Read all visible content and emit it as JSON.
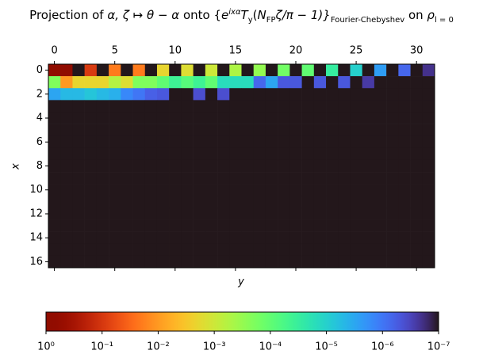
{
  "chart_data": {
    "type": "heatmap",
    "title": [
      {
        "text": "Projection of ",
        "role": "plain"
      },
      {
        "text": "α, ζ ↦ θ − α",
        "role": "math"
      },
      {
        "text": " onto {",
        "role": "plain"
      },
      {
        "text": "e",
        "role": "math"
      },
      {
        "text": "ixα",
        "role": "sup"
      },
      {
        "text": "T",
        "role": "math"
      },
      {
        "text": "y",
        "role": "sub"
      },
      {
        "text": "(",
        "role": "plain"
      },
      {
        "text": "N",
        "role": "math"
      },
      {
        "text": "FP",
        "role": "sub"
      },
      {
        "text": "ζ/π − 1)}",
        "role": "math"
      },
      {
        "text": "Fourier-Chebyshev",
        "role": "sub"
      },
      {
        "text": " on ",
        "role": "plain"
      },
      {
        "text": "ρ",
        "role": "math"
      },
      {
        "text": "l = 0",
        "role": "sub"
      }
    ],
    "xlabel": "y",
    "ylabel": "x",
    "xlim": [
      -0.5,
      31.5
    ],
    "ylim": [
      16.5,
      -0.5
    ],
    "xticks": [
      0,
      5,
      10,
      15,
      20,
      25,
      30
    ],
    "yticks": [
      0,
      2,
      4,
      6,
      8,
      10,
      12,
      14,
      16
    ],
    "colormap": "turbo",
    "log_scale": true,
    "clim": [
      1,
      1e-07
    ],
    "colorbar_ticks": [
      {
        "value": 1,
        "label": "10⁰"
      },
      {
        "value": 0.1,
        "label": "10⁻¹"
      },
      {
        "value": 0.01,
        "label": "10⁻²"
      },
      {
        "value": 0.001,
        "label": "10⁻³"
      },
      {
        "value": 0.0001,
        "label": "10⁻⁴"
      },
      {
        "value": 1e-05,
        "label": "10⁻⁵"
      },
      {
        "value": 1e-06,
        "label": "10⁻⁶"
      },
      {
        "value": 1e-07,
        "label": "10⁻⁷"
      }
    ],
    "z": [
      [
        1,
        0.8,
        1e-07,
        0.09,
        1e-07,
        0.02,
        1e-07,
        0.02,
        1e-07,
        0.002,
        1e-07,
        0.0015,
        1e-07,
        0.001,
        1e-07,
        0.0005,
        1e-07,
        0.0003,
        1e-07,
        0.00015,
        1e-07,
        0.0001,
        1e-07,
        3e-05,
        1e-07,
        1e-05,
        1e-07,
        2.5e-06,
        1e-07,
        7e-07,
        1e-07,
        2e-07
      ],
      [
        0.0002,
        0.01,
        0.002,
        0.002,
        0.002,
        0.0006,
        0.0015,
        0.0002,
        0.0002,
        0.0001,
        4e-05,
        8e-05,
        4e-05,
        0.0001,
        1.5e-05,
        1.5e-05,
        1.5e-05,
        7e-07,
        3e-06,
        5e-07,
        5e-07,
        1e-07,
        5e-07,
        1e-07,
        5e-07,
        1e-07,
        2.5e-07,
        1e-07,
        1e-07,
        1e-07,
        1e-07,
        1e-07
      ],
      [
        3e-06,
        5e-06,
        5e-06,
        7e-06,
        5e-06,
        4e-06,
        1.5e-06,
        1e-06,
        6e-07,
        5e-07,
        1e-07,
        1e-07,
        4e-07,
        1e-07,
        4e-07,
        1e-07,
        1e-07,
        1e-07,
        1e-07,
        1e-07,
        1e-07,
        1e-07,
        1e-07,
        1e-07,
        1e-07,
        1e-07,
        1e-07,
        1e-07,
        1e-07,
        1e-07,
        1e-07,
        1e-07
      ],
      [
        1e-07,
        1e-07,
        1e-07,
        1e-07,
        1e-07,
        1e-07,
        1e-07,
        1e-07,
        1e-07,
        1e-07,
        1e-07,
        1e-07,
        1e-07,
        1e-07,
        1e-07,
        1e-07,
        1e-07,
        1e-07,
        1e-07,
        1e-07,
        1e-07,
        1e-07,
        1e-07,
        1e-07,
        1e-07,
        1e-07,
        1e-07,
        1e-07,
        1e-07,
        1e-07,
        1e-07,
        1e-07
      ],
      [
        1e-07,
        1e-07,
        1e-07,
        1e-07,
        1e-07,
        1e-07,
        1e-07,
        1e-07,
        1e-07,
        1e-07,
        1e-07,
        1e-07,
        1e-07,
        1e-07,
        1e-07,
        1e-07,
        1e-07,
        1e-07,
        1e-07,
        1e-07,
        1e-07,
        1e-07,
        1e-07,
        1e-07,
        1e-07,
        1e-07,
        1e-07,
        1e-07,
        1e-07,
        1e-07,
        1e-07,
        1e-07
      ],
      [
        1e-07,
        1e-07,
        1e-07,
        1e-07,
        1e-07,
        1e-07,
        1e-07,
        1e-07,
        1e-07,
        1e-07,
        1e-07,
        1e-07,
        1e-07,
        1e-07,
        1e-07,
        1e-07,
        1e-07,
        1e-07,
        1e-07,
        1e-07,
        1e-07,
        1e-07,
        1e-07,
        1e-07,
        1e-07,
        1e-07,
        1e-07,
        1e-07,
        1e-07,
        1e-07,
        1e-07,
        1e-07
      ],
      [
        1e-07,
        1e-07,
        1e-07,
        1e-07,
        1e-07,
        1e-07,
        1e-07,
        1e-07,
        1e-07,
        1e-07,
        1e-07,
        1e-07,
        1e-07,
        1e-07,
        1e-07,
        1e-07,
        1e-07,
        1e-07,
        1e-07,
        1e-07,
        1e-07,
        1e-07,
        1e-07,
        1e-07,
        1e-07,
        1e-07,
        1e-07,
        1e-07,
        1e-07,
        1e-07,
        1e-07,
        1e-07
      ],
      [
        1e-07,
        1e-07,
        1e-07,
        1e-07,
        1e-07,
        1e-07,
        1e-07,
        1e-07,
        1e-07,
        1e-07,
        1e-07,
        1e-07,
        1e-07,
        1e-07,
        1e-07,
        1e-07,
        1e-07,
        1e-07,
        1e-07,
        1e-07,
        1e-07,
        1e-07,
        1e-07,
        1e-07,
        1e-07,
        1e-07,
        1e-07,
        1e-07,
        1e-07,
        1e-07,
        1e-07,
        1e-07
      ],
      [
        1e-07,
        1e-07,
        1e-07,
        1e-07,
        1e-07,
        1e-07,
        1e-07,
        1e-07,
        1e-07,
        1e-07,
        1e-07,
        1e-07,
        1e-07,
        1e-07,
        1e-07,
        1e-07,
        1e-07,
        1e-07,
        1e-07,
        1e-07,
        1e-07,
        1e-07,
        1e-07,
        1e-07,
        1e-07,
        1e-07,
        1e-07,
        1e-07,
        1e-07,
        1e-07,
        1e-07,
        1e-07
      ],
      [
        1e-07,
        1e-07,
        1e-07,
        1e-07,
        1e-07,
        1e-07,
        1e-07,
        1e-07,
        1e-07,
        1e-07,
        1e-07,
        1e-07,
        1e-07,
        1e-07,
        1e-07,
        1e-07,
        1e-07,
        1e-07,
        1e-07,
        1e-07,
        1e-07,
        1e-07,
        1e-07,
        1e-07,
        1e-07,
        1e-07,
        1e-07,
        1e-07,
        1e-07,
        1e-07,
        1e-07,
        1e-07
      ],
      [
        1e-07,
        1e-07,
        1e-07,
        1e-07,
        1e-07,
        1e-07,
        1e-07,
        1e-07,
        1e-07,
        1e-07,
        1e-07,
        1e-07,
        1e-07,
        1e-07,
        1e-07,
        1e-07,
        1e-07,
        1e-07,
        1e-07,
        1e-07,
        1e-07,
        1e-07,
        1e-07,
        1e-07,
        1e-07,
        1e-07,
        1e-07,
        1e-07,
        1e-07,
        1e-07,
        1e-07,
        1e-07
      ],
      [
        1e-07,
        1e-07,
        1e-07,
        1e-07,
        1e-07,
        1e-07,
        1e-07,
        1e-07,
        1e-07,
        1e-07,
        1e-07,
        1e-07,
        1e-07,
        1e-07,
        1e-07,
        1e-07,
        1e-07,
        1e-07,
        1e-07,
        1e-07,
        1e-07,
        1e-07,
        1e-07,
        1e-07,
        1e-07,
        1e-07,
        1e-07,
        1e-07,
        1e-07,
        1e-07,
        1e-07,
        1e-07
      ],
      [
        1e-07,
        1e-07,
        1e-07,
        1e-07,
        1e-07,
        1e-07,
        1e-07,
        1e-07,
        1e-07,
        1e-07,
        1e-07,
        1e-07,
        1e-07,
        1e-07,
        1e-07,
        1e-07,
        1e-07,
        1e-07,
        1e-07,
        1e-07,
        1e-07,
        1e-07,
        1e-07,
        1e-07,
        1e-07,
        1e-07,
        1e-07,
        1e-07,
        1e-07,
        1e-07,
        1e-07,
        1e-07
      ],
      [
        1e-07,
        1e-07,
        1e-07,
        1e-07,
        1e-07,
        1e-07,
        1e-07,
        1e-07,
        1e-07,
        1e-07,
        1e-07,
        1e-07,
        1e-07,
        1e-07,
        1e-07,
        1e-07,
        1e-07,
        1e-07,
        1e-07,
        1e-07,
        1e-07,
        1e-07,
        1e-07,
        1e-07,
        1e-07,
        1e-07,
        1e-07,
        1e-07,
        1e-07,
        1e-07,
        1e-07,
        1e-07
      ],
      [
        1e-07,
        1e-07,
        1e-07,
        1e-07,
        1e-07,
        1e-07,
        1e-07,
        1e-07,
        1e-07,
        1e-07,
        1e-07,
        1e-07,
        1e-07,
        1e-07,
        1e-07,
        1e-07,
        1e-07,
        1e-07,
        1e-07,
        1e-07,
        1e-07,
        1e-07,
        1e-07,
        1e-07,
        1e-07,
        1e-07,
        1e-07,
        1e-07,
        1e-07,
        1e-07,
        1e-07,
        1e-07
      ],
      [
        1e-07,
        1e-07,
        1e-07,
        1e-07,
        1e-07,
        1e-07,
        1e-07,
        1e-07,
        1e-07,
        1e-07,
        1e-07,
        1e-07,
        1e-07,
        1e-07,
        1e-07,
        1e-07,
        1e-07,
        1e-07,
        1e-07,
        1e-07,
        1e-07,
        1e-07,
        1e-07,
        1e-07,
        1e-07,
        1e-07,
        1e-07,
        1e-07,
        1e-07,
        1e-07,
        1e-07,
        1e-07
      ],
      [
        1e-07,
        1e-07,
        1e-07,
        1e-07,
        1e-07,
        1e-07,
        1e-07,
        1e-07,
        1e-07,
        1e-07,
        1e-07,
        1e-07,
        1e-07,
        1e-07,
        1e-07,
        1e-07,
        1e-07,
        1e-07,
        1e-07,
        1e-07,
        1e-07,
        1e-07,
        1e-07,
        1e-07,
        1e-07,
        1e-07,
        1e-07,
        1e-07,
        1e-07,
        1e-07,
        1e-07,
        1e-07
      ]
    ]
  }
}
